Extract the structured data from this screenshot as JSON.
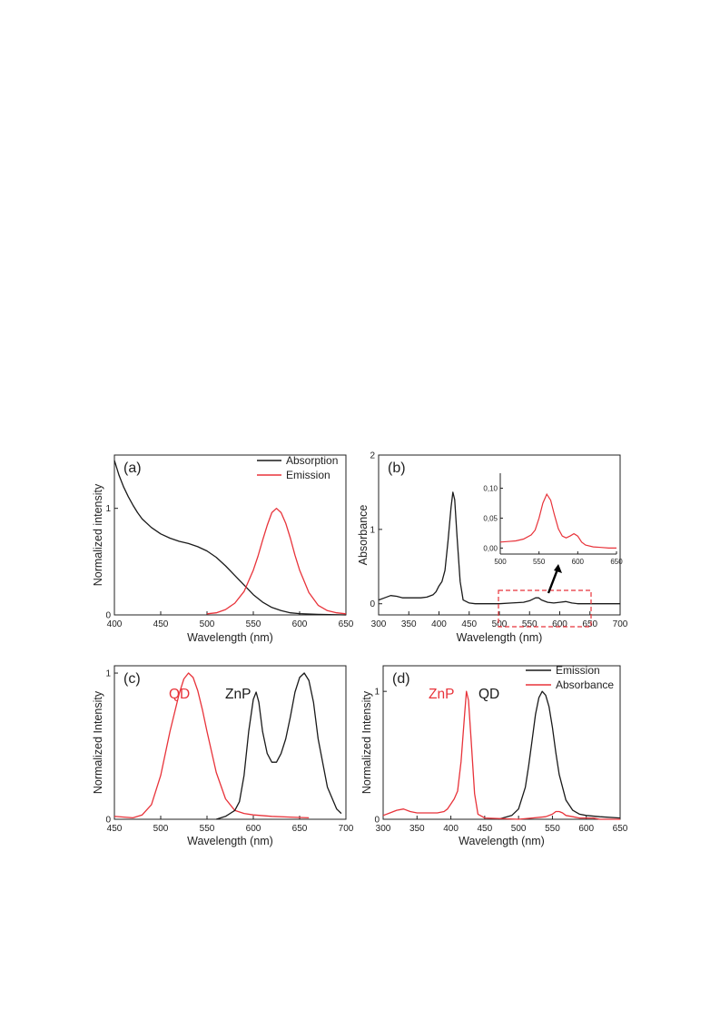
{
  "colors": {
    "black_series": "#1a1a1a",
    "red_series": "#e8333a",
    "axis": "#222222"
  },
  "chart_data": [
    {
      "id": "a",
      "type": "line",
      "panel_label": "(a)",
      "xlabel": "Wavelength (nm)",
      "ylabel": "Normalized intensity",
      "xlim": [
        400,
        650
      ],
      "ylim": [
        0,
        1.5
      ],
      "xticks": [
        400,
        450,
        500,
        550,
        600,
        650
      ],
      "yticks": [
        0,
        1
      ],
      "legend": "top-right",
      "series": [
        {
          "name": "Absorption",
          "color": "black",
          "x": [
            400,
            405,
            410,
            415,
            420,
            425,
            430,
            440,
            450,
            460,
            470,
            480,
            490,
            500,
            510,
            520,
            530,
            540,
            550,
            560,
            570,
            580,
            590,
            600,
            620,
            650
          ],
          "y": [
            1.45,
            1.31,
            1.2,
            1.11,
            1.03,
            0.96,
            0.9,
            0.82,
            0.76,
            0.72,
            0.69,
            0.67,
            0.64,
            0.6,
            0.54,
            0.46,
            0.37,
            0.28,
            0.19,
            0.12,
            0.07,
            0.04,
            0.02,
            0.012,
            0.005,
            0.0
          ]
        },
        {
          "name": "Emission",
          "color": "red",
          "x": [
            500,
            510,
            520,
            530,
            540,
            550,
            555,
            560,
            565,
            570,
            575,
            580,
            585,
            590,
            595,
            600,
            610,
            620,
            630,
            640,
            650
          ],
          "y": [
            0.01,
            0.02,
            0.05,
            0.11,
            0.22,
            0.42,
            0.55,
            0.7,
            0.84,
            0.96,
            1.0,
            0.96,
            0.86,
            0.72,
            0.56,
            0.42,
            0.21,
            0.09,
            0.04,
            0.02,
            0.01
          ]
        }
      ]
    },
    {
      "id": "b",
      "type": "line",
      "panel_label": "(b)",
      "xlabel": "Wavelength (nm)",
      "ylabel": "Absorbance",
      "xlim": [
        300,
        700
      ],
      "ylim": [
        -0.15,
        2.0
      ],
      "xticks": [
        300,
        350,
        400,
        450,
        500,
        550,
        600,
        650,
        700
      ],
      "yticks": [
        0,
        1,
        2
      ],
      "series": [
        {
          "color": "black",
          "x": [
            300,
            310,
            320,
            330,
            340,
            350,
            360,
            370,
            380,
            390,
            395,
            400,
            405,
            410,
            415,
            420,
            423,
            426,
            430,
            435,
            440,
            450,
            460,
            500,
            520,
            540,
            550,
            560,
            565,
            570,
            580,
            590,
            600,
            610,
            620,
            630,
            640,
            700
          ],
          "y": [
            0.05,
            0.08,
            0.11,
            0.1,
            0.08,
            0.08,
            0.08,
            0.08,
            0.09,
            0.12,
            0.16,
            0.24,
            0.3,
            0.45,
            0.85,
            1.3,
            1.5,
            1.4,
            0.9,
            0.3,
            0.05,
            0.01,
            0.0,
            0.0,
            0.01,
            0.02,
            0.04,
            0.08,
            0.08,
            0.05,
            0.02,
            0.01,
            0.02,
            0.03,
            0.01,
            0.0,
            0.0,
            0.0
          ]
        }
      ],
      "inset": {
        "xlim": [
          500,
          650
        ],
        "ylim": [
          -0.01,
          0.125
        ],
        "xticks": [
          500,
          550,
          600,
          650
        ],
        "ytick_labels": [
          "0,00",
          "0,05",
          "0,10"
        ],
        "ytick_values": [
          0.0,
          0.05,
          0.1
        ],
        "series": [
          {
            "color": "red",
            "x": [
              500,
              510,
              520,
              530,
              540,
              545,
              550,
              555,
              560,
              565,
              570,
              575,
              580,
              585,
              590,
              595,
              600,
              605,
              610,
              620,
              630,
              640,
              650
            ],
            "y": [
              0.01,
              0.011,
              0.012,
              0.015,
              0.022,
              0.03,
              0.05,
              0.075,
              0.09,
              0.08,
              0.055,
              0.032,
              0.02,
              0.017,
              0.02,
              0.024,
              0.02,
              0.01,
              0.005,
              0.002,
              0.001,
              0.0,
              0.0
            ]
          }
        ]
      }
    },
    {
      "id": "c",
      "type": "line",
      "panel_label": "(c)",
      "xlabel": "Wavelength (nm)",
      "ylabel": "Normalized Intensity",
      "xlim": [
        450,
        700
      ],
      "ylim": [
        0,
        1.05
      ],
      "xticks": [
        450,
        500,
        550,
        600,
        650,
        700
      ],
      "yticks": [
        0,
        1
      ],
      "series": [
        {
          "label": "QD",
          "color": "red",
          "x": [
            450,
            470,
            480,
            490,
            500,
            510,
            520,
            525,
            530,
            535,
            540,
            545,
            550,
            560,
            570,
            580,
            590,
            600,
            620,
            640,
            660
          ],
          "y": [
            0.02,
            0.01,
            0.03,
            0.1,
            0.3,
            0.6,
            0.86,
            0.96,
            1.0,
            0.97,
            0.88,
            0.75,
            0.6,
            0.32,
            0.14,
            0.06,
            0.04,
            0.03,
            0.02,
            0.015,
            0.01
          ]
        },
        {
          "label": "ZnP",
          "color": "black",
          "x": [
            560,
            570,
            580,
            585,
            590,
            595,
            600,
            603,
            606,
            610,
            615,
            620,
            625,
            630,
            635,
            640,
            645,
            650,
            655,
            660,
            665,
            670,
            680,
            690,
            695
          ],
          "y": [
            0.0,
            0.02,
            0.06,
            0.12,
            0.3,
            0.6,
            0.82,
            0.87,
            0.8,
            0.6,
            0.45,
            0.39,
            0.39,
            0.45,
            0.55,
            0.7,
            0.87,
            0.97,
            1.0,
            0.95,
            0.8,
            0.55,
            0.22,
            0.07,
            0.04
          ]
        }
      ]
    },
    {
      "id": "d",
      "type": "line",
      "panel_label": "(d)",
      "xlabel": "Wavelength (nm)",
      "ylabel": "Normalized Intensity",
      "xlim": [
        300,
        650
      ],
      "ylim": [
        0,
        1.2
      ],
      "xticks": [
        300,
        350,
        400,
        450,
        500,
        550,
        600,
        650
      ],
      "yticks": [
        0,
        1
      ],
      "legend": "top-right",
      "series": [
        {
          "name": "Emission",
          "label": "QD",
          "color": "black",
          "x": [
            470,
            490,
            500,
            510,
            515,
            520,
            525,
            530,
            535,
            540,
            545,
            550,
            555,
            560,
            570,
            580,
            590,
            600,
            620,
            650
          ],
          "y": [
            0.0,
            0.03,
            0.08,
            0.25,
            0.42,
            0.62,
            0.82,
            0.95,
            1.0,
            0.97,
            0.88,
            0.72,
            0.52,
            0.35,
            0.15,
            0.07,
            0.04,
            0.03,
            0.02,
            0.01
          ]
        },
        {
          "name": "Absorbance",
          "label": "ZnP",
          "color": "red",
          "x": [
            300,
            310,
            320,
            330,
            340,
            350,
            360,
            370,
            380,
            390,
            395,
            400,
            405,
            410,
            415,
            420,
            423,
            426,
            430,
            435,
            440,
            450,
            500,
            520,
            540,
            550,
            555,
            560,
            565,
            570,
            580,
            590,
            600,
            610,
            620,
            650
          ],
          "y": [
            0.03,
            0.05,
            0.07,
            0.08,
            0.06,
            0.05,
            0.05,
            0.05,
            0.05,
            0.06,
            0.08,
            0.12,
            0.16,
            0.22,
            0.45,
            0.8,
            1.0,
            0.93,
            0.62,
            0.2,
            0.04,
            0.01,
            0.0,
            0.01,
            0.02,
            0.04,
            0.06,
            0.06,
            0.05,
            0.03,
            0.02,
            0.01,
            0.01,
            0.01,
            0.0,
            0.0
          ]
        }
      ]
    }
  ]
}
